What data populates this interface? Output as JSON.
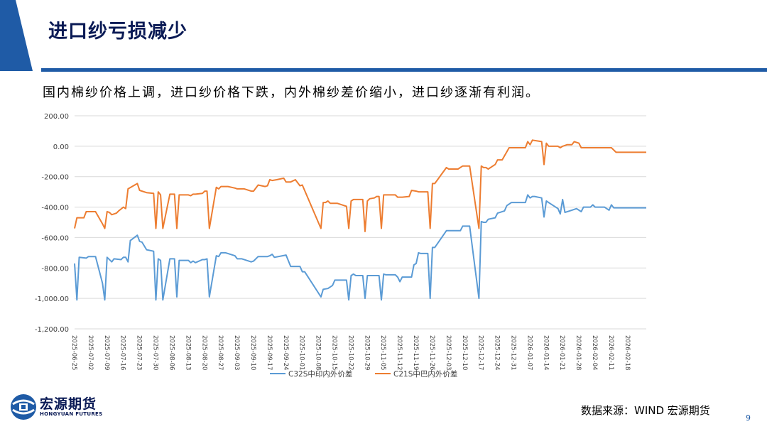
{
  "slide": {
    "title": "进口纱亏损减少",
    "subtitle": "国内棉纱价格上调，进口纱价格下跌，内外棉纱差价缩小，进口纱逐渐有利润。",
    "source": "数据来源：WIND   宏源期货",
    "page_number": "9",
    "logo": {
      "name": "宏源期货",
      "english": "HONGYUAN FUTURES",
      "icon": "hongyuan-logo-icon"
    },
    "colors": {
      "accent": "#1f5ba6",
      "title": "#0a1a55"
    }
  },
  "chart_data": {
    "type": "line",
    "title": "",
    "xlabel": "",
    "ylabel": "",
    "ylim": [
      -1200,
      200
    ],
    "yticks": [
      200,
      0,
      -200,
      -400,
      -600,
      -800,
      -1000,
      -1200
    ],
    "ytick_labels": [
      "200.00",
      "0.00",
      "-200.00",
      "-400.00",
      "-600.00",
      "-800.00",
      "-1,000.00",
      "-1,200.00"
    ],
    "x_start": "2025-06-25",
    "x_end": "2026-02-26",
    "xtick_labels": [
      "2025-06-25",
      "2025-07-02",
      "2025-07-09",
      "2025-07-16",
      "2025-07-23",
      "2025-07-30",
      "2025-08-06",
      "2025-08-13",
      "2025-08-20",
      "2025-08-27",
      "2025-09-03",
      "2025-09-10",
      "2025-09-17",
      "2025-09-24",
      "2025-10-01",
      "2025-10-08",
      "2025-10-15",
      "2025-10-22",
      "2025-10-29",
      "2025-11-05",
      "2025-11-12",
      "2025-11-19",
      "2025-11-26",
      "2025-12-03",
      "2025-12-10",
      "2025-12-17",
      "2025-12-24",
      "2025-12-31",
      "2026-01-07",
      "2026-01-14",
      "2026-01-21",
      "2026-01-28",
      "2026-02-04",
      "2026-02-11",
      "2026-02-18"
    ],
    "grid": true,
    "legend_position": "bottom",
    "series": [
      {
        "name": "C32S中印内外价差",
        "color": "#5b9bd5",
        "points": [
          [
            "2025-06-25",
            -770
          ],
          [
            "2025-06-26",
            -1010
          ],
          [
            "2025-06-27",
            -730
          ],
          [
            "2025-06-30",
            -735
          ],
          [
            "2025-07-01",
            -725
          ],
          [
            "2025-07-04",
            -725
          ],
          [
            "2025-07-07",
            -900
          ],
          [
            "2025-07-08",
            -1010
          ],
          [
            "2025-07-09",
            -730
          ],
          [
            "2025-07-11",
            -760
          ],
          [
            "2025-07-12",
            -740
          ],
          [
            "2025-07-15",
            -745
          ],
          [
            "2025-07-16",
            -730
          ],
          [
            "2025-07-17",
            -730
          ],
          [
            "2025-07-18",
            -760
          ],
          [
            "2025-07-19",
            -620
          ],
          [
            "2025-07-22",
            -585
          ],
          [
            "2025-07-23",
            -625
          ],
          [
            "2025-07-24",
            -630
          ],
          [
            "2025-07-26",
            -680
          ],
          [
            "2025-07-29",
            -690
          ],
          [
            "2025-07-30",
            -1010
          ],
          [
            "2025-07-31",
            -740
          ],
          [
            "2025-08-01",
            -750
          ],
          [
            "2025-08-02",
            -1010
          ],
          [
            "2025-08-05",
            -740
          ],
          [
            "2025-08-07",
            -740
          ],
          [
            "2025-08-08",
            -990
          ],
          [
            "2025-08-09",
            -750
          ],
          [
            "2025-08-13",
            -750
          ],
          [
            "2025-08-14",
            -765
          ],
          [
            "2025-08-15",
            -755
          ],
          [
            "2025-08-16",
            -765
          ],
          [
            "2025-08-19",
            -745
          ],
          [
            "2025-08-20",
            -745
          ],
          [
            "2025-08-21",
            -740
          ],
          [
            "2025-08-22",
            -990
          ],
          [
            "2025-08-25",
            -720
          ],
          [
            "2025-08-26",
            -725
          ],
          [
            "2025-08-27",
            -700
          ],
          [
            "2025-08-29",
            -700
          ],
          [
            "2025-09-02",
            -720
          ],
          [
            "2025-09-03",
            -740
          ],
          [
            "2025-09-05",
            -740
          ],
          [
            "2025-09-09",
            -760
          ],
          [
            "2025-09-10",
            -755
          ],
          [
            "2025-09-12",
            -725
          ],
          [
            "2025-09-16",
            -725
          ],
          [
            "2025-09-17",
            -720
          ],
          [
            "2025-09-18",
            -710
          ],
          [
            "2025-09-19",
            -730
          ],
          [
            "2025-09-24",
            -715
          ],
          [
            "2025-09-26",
            -790
          ],
          [
            "2025-09-30",
            -790
          ],
          [
            "2025-10-01",
            -825
          ],
          [
            "2025-10-02",
            -825
          ],
          [
            "2025-10-09",
            -990
          ],
          [
            "2025-10-10",
            -940
          ],
          [
            "2025-10-12",
            -935
          ],
          [
            "2025-10-14",
            -915
          ],
          [
            "2025-10-15",
            -880
          ],
          [
            "2025-10-20",
            -880
          ],
          [
            "2025-10-21",
            -1010
          ],
          [
            "2025-10-22",
            -850
          ],
          [
            "2025-10-23",
            -840
          ],
          [
            "2025-10-24",
            -850
          ],
          [
            "2025-10-27",
            -850
          ],
          [
            "2025-10-28",
            -1000
          ],
          [
            "2025-10-29",
            -850
          ],
          [
            "2025-11-03",
            -850
          ],
          [
            "2025-11-04",
            -1010
          ],
          [
            "2025-11-05",
            -840
          ],
          [
            "2025-11-06",
            -845
          ],
          [
            "2025-11-10",
            -845
          ],
          [
            "2025-11-11",
            -860
          ],
          [
            "2025-11-12",
            -890
          ],
          [
            "2025-11-13",
            -860
          ],
          [
            "2025-11-14",
            -860
          ],
          [
            "2025-11-17",
            -860
          ],
          [
            "2025-11-18",
            -780
          ],
          [
            "2025-11-19",
            -770
          ],
          [
            "2025-11-20",
            -700
          ],
          [
            "2025-11-21",
            -705
          ],
          [
            "2025-11-24",
            -705
          ],
          [
            "2025-11-25",
            -1000
          ],
          [
            "2025-11-26",
            -665
          ],
          [
            "2025-11-27",
            -665
          ],
          [
            "2025-12-02",
            -555
          ],
          [
            "2025-12-08",
            -555
          ],
          [
            "2025-12-09",
            -525
          ],
          [
            "2025-12-12",
            -525
          ],
          [
            "2025-12-16",
            -1000
          ],
          [
            "2025-12-17",
            -495
          ],
          [
            "2025-12-18",
            -500
          ],
          [
            "2025-12-19",
            -500
          ],
          [
            "2025-12-20",
            -480
          ],
          [
            "2025-12-23",
            -470
          ],
          [
            "2025-12-24",
            -440
          ],
          [
            "2025-12-25",
            -435
          ],
          [
            "2025-12-27",
            -425
          ],
          [
            "2025-12-28",
            -390
          ],
          [
            "2025-12-30",
            -370
          ],
          [
            "2026-01-05",
            -370
          ],
          [
            "2026-01-06",
            -320
          ],
          [
            "2026-01-07",
            -340
          ],
          [
            "2026-01-08",
            -330
          ],
          [
            "2026-01-09",
            -330
          ],
          [
            "2026-01-12",
            -340
          ],
          [
            "2026-01-13",
            -465
          ],
          [
            "2026-01-14",
            -360
          ],
          [
            "2026-01-16",
            -380
          ],
          [
            "2026-01-19",
            -410
          ],
          [
            "2026-01-20",
            -445
          ],
          [
            "2026-01-21",
            -350
          ],
          [
            "2026-01-22",
            -435
          ],
          [
            "2026-01-25",
            -420
          ],
          [
            "2026-01-27",
            -410
          ],
          [
            "2026-01-29",
            -430
          ],
          [
            "2026-01-30",
            -400
          ],
          [
            "2026-02-02",
            -400
          ],
          [
            "2026-02-03",
            -385
          ],
          [
            "2026-02-04",
            -400
          ],
          [
            "2026-02-08",
            -400
          ],
          [
            "2026-02-10",
            -420
          ],
          [
            "2026-02-11",
            -385
          ],
          [
            "2026-02-12",
            -405
          ],
          [
            "2026-02-26",
            -405
          ]
        ]
      },
      {
        "name": "C21S中巴内外价差",
        "color": "#ed7d31",
        "points": [
          [
            "2025-06-25",
            -540
          ],
          [
            "2025-06-26",
            -470
          ],
          [
            "2025-06-29",
            -470
          ],
          [
            "2025-06-30",
            -430
          ],
          [
            "2025-07-04",
            -430
          ],
          [
            "2025-07-07",
            -510
          ],
          [
            "2025-07-08",
            -540
          ],
          [
            "2025-07-09",
            -430
          ],
          [
            "2025-07-10",
            -435
          ],
          [
            "2025-07-11",
            -450
          ],
          [
            "2025-07-13",
            -440
          ],
          [
            "2025-07-14",
            -425
          ],
          [
            "2025-07-16",
            -400
          ],
          [
            "2025-07-17",
            -410
          ],
          [
            "2025-07-18",
            -280
          ],
          [
            "2025-07-22",
            -245
          ],
          [
            "2025-07-23",
            -290
          ],
          [
            "2025-07-26",
            -305
          ],
          [
            "2025-07-29",
            -310
          ],
          [
            "2025-07-30",
            -540
          ],
          [
            "2025-07-31",
            -300
          ],
          [
            "2025-08-01",
            -320
          ],
          [
            "2025-08-02",
            -540
          ],
          [
            "2025-08-05",
            -315
          ],
          [
            "2025-08-07",
            -315
          ],
          [
            "2025-08-08",
            -540
          ],
          [
            "2025-08-09",
            -320
          ],
          [
            "2025-08-13",
            -320
          ],
          [
            "2025-08-14",
            -325
          ],
          [
            "2025-08-15",
            -315
          ],
          [
            "2025-08-16",
            -315
          ],
          [
            "2025-08-19",
            -310
          ],
          [
            "2025-08-20",
            -295
          ],
          [
            "2025-08-21",
            -295
          ],
          [
            "2025-08-22",
            -540
          ],
          [
            "2025-08-25",
            -270
          ],
          [
            "2025-08-26",
            -280
          ],
          [
            "2025-08-27",
            -265
          ],
          [
            "2025-08-30",
            -265
          ],
          [
            "2025-09-02",
            -275
          ],
          [
            "2025-09-03",
            -280
          ],
          [
            "2025-09-06",
            -280
          ],
          [
            "2025-09-09",
            -295
          ],
          [
            "2025-09-10",
            -295
          ],
          [
            "2025-09-12",
            -255
          ],
          [
            "2025-09-15",
            -265
          ],
          [
            "2025-09-16",
            -260
          ],
          [
            "2025-09-17",
            -220
          ],
          [
            "2025-09-18",
            -225
          ],
          [
            "2025-09-20",
            -220
          ],
          [
            "2025-09-23",
            -210
          ],
          [
            "2025-09-24",
            -235
          ],
          [
            "2025-09-26",
            -235
          ],
          [
            "2025-09-28",
            -220
          ],
          [
            "2025-09-30",
            -260
          ],
          [
            "2025-10-01",
            -255
          ],
          [
            "2025-10-09",
            -540
          ],
          [
            "2025-10-10",
            -370
          ],
          [
            "2025-10-11",
            -370
          ],
          [
            "2025-10-12",
            -360
          ],
          [
            "2025-10-13",
            -375
          ],
          [
            "2025-10-16",
            -375
          ],
          [
            "2025-10-19",
            -390
          ],
          [
            "2025-10-20",
            -395
          ],
          [
            "2025-10-21",
            -540
          ],
          [
            "2025-10-22",
            -360
          ],
          [
            "2025-10-23",
            -350
          ],
          [
            "2025-10-27",
            -350
          ],
          [
            "2025-10-28",
            -560
          ],
          [
            "2025-10-29",
            -360
          ],
          [
            "2025-10-30",
            -345
          ],
          [
            "2025-11-01",
            -340
          ],
          [
            "2025-11-02",
            -330
          ],
          [
            "2025-11-03",
            -330
          ],
          [
            "2025-11-04",
            -540
          ],
          [
            "2025-11-05",
            -320
          ],
          [
            "2025-11-06",
            -320
          ],
          [
            "2025-11-10",
            -320
          ],
          [
            "2025-11-11",
            -335
          ],
          [
            "2025-11-13",
            -335
          ],
          [
            "2025-11-16",
            -330
          ],
          [
            "2025-11-17",
            -290
          ],
          [
            "2025-11-19",
            -295
          ],
          [
            "2025-11-20",
            -300
          ],
          [
            "2025-11-24",
            -300
          ],
          [
            "2025-11-25",
            -540
          ],
          [
            "2025-11-26",
            -245
          ],
          [
            "2025-11-27",
            -245
          ],
          [
            "2025-12-02",
            -140
          ],
          [
            "2025-12-03",
            -150
          ],
          [
            "2025-12-07",
            -150
          ],
          [
            "2025-12-09",
            -130
          ],
          [
            "2025-12-12",
            -130
          ],
          [
            "2025-12-16",
            -540
          ],
          [
            "2025-12-17",
            -130
          ],
          [
            "2025-12-18",
            -140
          ],
          [
            "2025-12-19",
            -140
          ],
          [
            "2025-12-20",
            -150
          ],
          [
            "2025-12-23",
            -120
          ],
          [
            "2025-12-24",
            -90
          ],
          [
            "2025-12-26",
            -90
          ],
          [
            "2025-12-29",
            -10
          ],
          [
            "2026-01-05",
            -10
          ],
          [
            "2026-01-06",
            30
          ],
          [
            "2026-01-07",
            10
          ],
          [
            "2026-01-08",
            40
          ],
          [
            "2026-01-12",
            30
          ],
          [
            "2026-01-13",
            -120
          ],
          [
            "2026-01-14",
            20
          ],
          [
            "2026-01-15",
            0
          ],
          [
            "2026-01-19",
            0
          ],
          [
            "2026-01-20",
            -10
          ],
          [
            "2026-01-21",
            0
          ],
          [
            "2026-01-23",
            10
          ],
          [
            "2026-01-25",
            10
          ],
          [
            "2026-01-26",
            30
          ],
          [
            "2026-01-28",
            20
          ],
          [
            "2026-01-29",
            -10
          ],
          [
            "2026-02-11",
            -10
          ],
          [
            "2026-02-13",
            -40
          ],
          [
            "2026-02-26",
            -40
          ]
        ]
      }
    ]
  }
}
